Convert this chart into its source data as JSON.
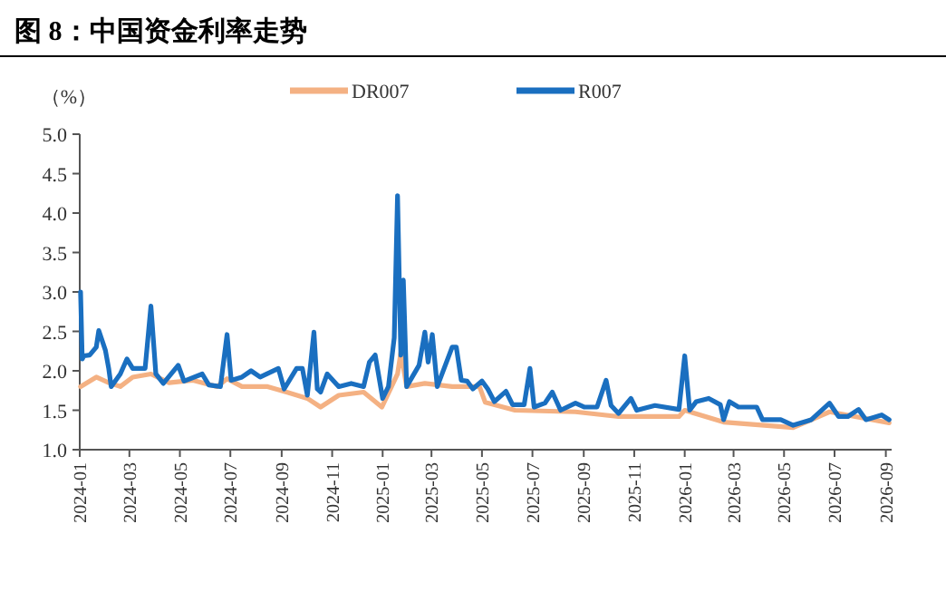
{
  "chart_data": {
    "type": "line",
    "title": "图 8：中国资金利率走势",
    "ylabel": "（%）",
    "series": [
      {
        "name": "DR007",
        "color": "#f4b183",
        "x": [
          "2024-01-02",
          "2024-01-21",
          "2024-02-05",
          "2024-02-19",
          "2024-03-05",
          "2024-03-27",
          "2024-04-18",
          "2024-05-17",
          "2024-06-15",
          "2024-06-27",
          "2024-07-15",
          "2024-08-15",
          "2024-09-07",
          "2024-10-02",
          "2024-10-18",
          "2024-11-09",
          "2024-12-09",
          "2024-12-31",
          "2025-01-19",
          "2025-01-23",
          "2025-01-30",
          "2025-02-21",
          "2025-03-26",
          "2025-04-28",
          "2025-05-05",
          "2025-06-10",
          "2025-08-22",
          "2025-10-13",
          "2025-12-25",
          "2026-01-01",
          "2026-02-17",
          "2026-05-12",
          "2026-06-25",
          "2026-09-05"
        ],
        "values": [
          1.8,
          1.92,
          1.85,
          1.8,
          1.92,
          1.96,
          1.85,
          1.88,
          1.8,
          1.9,
          1.8,
          1.8,
          1.73,
          1.65,
          1.54,
          1.69,
          1.73,
          1.54,
          1.96,
          2.23,
          1.8,
          1.84,
          1.8,
          1.8,
          1.6,
          1.5,
          1.48,
          1.42,
          1.42,
          1.5,
          1.35,
          1.28,
          1.48,
          1.34
        ]
      },
      {
        "name": "R007",
        "color": "#1a6fc0",
        "x": [
          "2024-01-02",
          "2024-01-04",
          "2024-01-06",
          "2024-01-13",
          "2024-01-21",
          "2024-01-24",
          "2024-02-01",
          "2024-02-05",
          "2024-02-08",
          "2024-02-19",
          "2024-02-27",
          "2024-03-05",
          "2024-03-20",
          "2024-03-27",
          "2024-04-02",
          "2024-04-11",
          "2024-04-29",
          "2024-05-06",
          "2024-05-28",
          "2024-06-05",
          "2024-06-19",
          "2024-06-27",
          "2024-07-02",
          "2024-07-15",
          "2024-07-26",
          "2024-08-06",
          "2024-08-28",
          "2024-09-04",
          "2024-09-19",
          "2024-09-26",
          "2024-10-02",
          "2024-10-10",
          "2024-10-14",
          "2024-10-18",
          "2024-10-26",
          "2024-11-09",
          "2024-11-24",
          "2024-12-09",
          "2024-12-16",
          "2024-12-23",
          "2025-01-01",
          "2025-01-08",
          "2025-01-15",
          "2025-01-19",
          "2025-01-23",
          "2025-01-26",
          "2025-01-30",
          "2025-02-14",
          "2025-02-21",
          "2025-02-25",
          "2025-03-02",
          "2025-03-08",
          "2025-03-26",
          "2025-03-31",
          "2025-04-06",
          "2025-04-13",
          "2025-04-20",
          "2025-05-01",
          "2025-05-08",
          "2025-05-16",
          "2025-05-30",
          "2025-06-07",
          "2025-06-21",
          "2025-06-28",
          "2025-07-03",
          "2025-07-16",
          "2025-07-25",
          "2025-08-04",
          "2025-08-22",
          "2025-09-02",
          "2025-09-17",
          "2025-09-28",
          "2025-10-04",
          "2025-10-13",
          "2025-10-28",
          "2025-11-04",
          "2025-11-26",
          "2025-12-25",
          "2026-01-01",
          "2026-01-07",
          "2026-01-15",
          "2026-01-30",
          "2026-02-13",
          "2026-02-17",
          "2026-02-24",
          "2026-03-07",
          "2026-03-29",
          "2026-04-05",
          "2026-04-27",
          "2026-05-12",
          "2026-06-03",
          "2026-06-25",
          "2026-07-06",
          "2026-07-17",
          "2026-07-30",
          "2026-08-08",
          "2026-08-27",
          "2026-09-05"
        ],
        "values": [
          3.0,
          2.15,
          2.19,
          2.2,
          2.3,
          2.51,
          2.26,
          2.03,
          1.8,
          1.96,
          2.15,
          2.03,
          2.03,
          2.82,
          1.96,
          1.84,
          2.07,
          1.87,
          1.96,
          1.82,
          1.8,
          2.46,
          1.88,
          1.92,
          2.0,
          1.92,
          2.03,
          1.77,
          2.03,
          2.03,
          1.69,
          2.49,
          1.77,
          1.73,
          1.96,
          1.8,
          1.84,
          1.8,
          2.11,
          2.2,
          1.65,
          1.8,
          2.42,
          4.22,
          2.2,
          3.15,
          1.8,
          2.07,
          2.49,
          2.11,
          2.46,
          1.8,
          2.3,
          2.3,
          1.88,
          1.87,
          1.77,
          1.87,
          1.77,
          1.61,
          1.74,
          1.57,
          1.57,
          2.03,
          1.54,
          1.59,
          1.73,
          1.5,
          1.59,
          1.54,
          1.54,
          1.88,
          1.56,
          1.46,
          1.65,
          1.5,
          1.56,
          1.51,
          2.19,
          1.5,
          1.61,
          1.65,
          1.57,
          1.38,
          1.61,
          1.54,
          1.54,
          1.38,
          1.38,
          1.31,
          1.38,
          1.59,
          1.42,
          1.42,
          1.51,
          1.38,
          1.44,
          1.38
        ]
      }
    ],
    "xlim": [
      "2024-01-01",
      "2026-09-08"
    ],
    "xticks": [
      {
        "value": "2024-01-01",
        "label": "2024-01"
      },
      {
        "value": "2024-03-01",
        "label": "2024-03"
      },
      {
        "value": "2024-05-01",
        "label": "2024-05"
      },
      {
        "value": "2024-07-01",
        "label": "2024-07"
      },
      {
        "value": "2024-09-01",
        "label": "2024-09"
      },
      {
        "value": "2024-11-01",
        "label": "2024-11"
      },
      {
        "value": "2025-01-01",
        "label": "2025-01"
      },
      {
        "value": "2025-03-01",
        "label": "2025-03"
      },
      {
        "value": "2025-05-01",
        "label": "2025-05"
      },
      {
        "value": "2025-07-01",
        "label": "2025-07"
      },
      {
        "value": "2025-09-01",
        "label": "2025-09"
      },
      {
        "value": "2025-11-01",
        "label": "2025-11"
      },
      {
        "value": "2026-01-01",
        "label": "2026-01"
      },
      {
        "value": "2026-03-01",
        "label": "2026-03"
      },
      {
        "value": "2026-05-01",
        "label": "2026-05"
      },
      {
        "value": "2026-07-01",
        "label": "2026-07"
      },
      {
        "value": "2026-09-01",
        "label": "2026-09"
      }
    ],
    "ylim": [
      1,
      5
    ],
    "yticks": [
      {
        "value": 1,
        "label": "1.0"
      },
      {
        "value": 1.5,
        "label": "1.5"
      },
      {
        "value": 2,
        "label": "2.0"
      },
      {
        "value": 2.5,
        "label": "2.5"
      },
      {
        "value": 3,
        "label": "3.0"
      },
      {
        "value": 3.5,
        "label": "3.5"
      },
      {
        "value": 4,
        "label": "4.0"
      },
      {
        "value": 4.5,
        "label": "4.5"
      },
      {
        "value": 5,
        "label": "5.0"
      }
    ],
    "legend": "top",
    "marker": "none",
    "line_style": "solid",
    "grid": false
  }
}
